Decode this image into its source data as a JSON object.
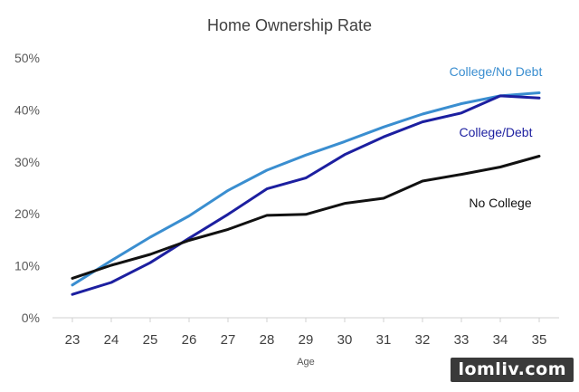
{
  "chart_data": {
    "type": "line",
    "title": "Home Ownership Rate",
    "xlabel": "Age",
    "ylabel": "",
    "x": [
      23,
      24,
      25,
      26,
      27,
      28,
      29,
      30,
      31,
      32,
      33,
      34,
      35
    ],
    "ylim": [
      0,
      50
    ],
    "yticks": [
      0,
      10,
      20,
      30,
      40,
      50
    ],
    "ytick_labels": [
      "0%",
      "10%",
      "20%",
      "30%",
      "40%",
      "50%"
    ],
    "grid": false,
    "legend": "direct-labels",
    "series": [
      {
        "name": "College/No Debt",
        "color": "#3a8ed0",
        "values": [
          6.3,
          11.0,
          15.5,
          19.6,
          24.5,
          28.4,
          31.3,
          33.9,
          36.7,
          39.2,
          41.2,
          42.7,
          43.3
        ]
      },
      {
        "name": "College/Debt",
        "color": "#1c1fa0",
        "values": [
          4.5,
          6.8,
          10.6,
          15.3,
          19.9,
          24.8,
          26.9,
          31.4,
          34.8,
          37.7,
          39.4,
          42.7,
          42.3
        ]
      },
      {
        "name": "No College",
        "color": "#111111",
        "values": [
          7.6,
          10.1,
          12.2,
          14.9,
          17.0,
          19.7,
          19.9,
          22.0,
          23.0,
          26.3,
          27.6,
          29.0,
          31.1
        ]
      }
    ]
  },
  "watermark": "lomliv.com"
}
